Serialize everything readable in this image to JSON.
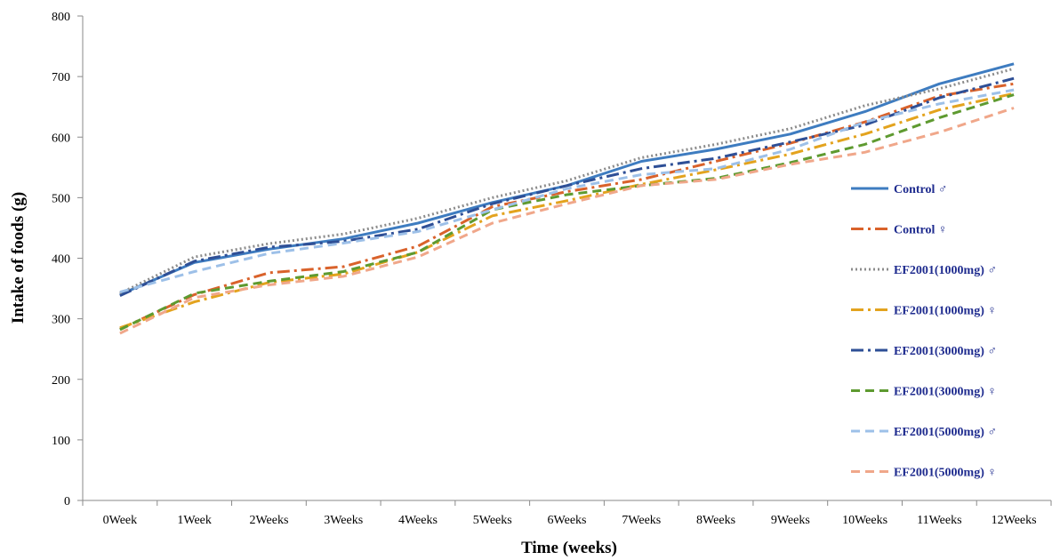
{
  "chart_data": {
    "type": "line",
    "xlabel": "Time (weeks)",
    "ylabel": "Intake of foods (g)",
    "ylim": [
      0,
      800
    ],
    "yticks": [
      0,
      100,
      200,
      300,
      400,
      500,
      600,
      700,
      800
    ],
    "categories": [
      "0Week",
      "1Week",
      "2Weeks",
      "3Weeks",
      "4Weeks",
      "5Weeks",
      "6Weeks",
      "7Weeks",
      "8Weeks",
      "9Weeks",
      "10Weeks",
      "11Weeks",
      "12Weeks"
    ],
    "grid": false,
    "legend_position": "right",
    "legend_text_color": "#1F2C8F",
    "series": [
      {
        "name": "Control ♂",
        "color": "#3E7CC0",
        "style": "solid",
        "values": [
          340,
          393,
          415,
          432,
          458,
          492,
          520,
          560,
          580,
          605,
          642,
          688,
          721
        ]
      },
      {
        "name": "Control ♀",
        "color": "#D9622B",
        "style": "dashdot",
        "values": [
          283,
          340,
          376,
          386,
          420,
          485,
          510,
          530,
          560,
          590,
          625,
          668,
          688
        ]
      },
      {
        "name": "EF2001(1000mg) ♂",
        "color": "#8C8C8C",
        "style": "dotted",
        "values": [
          342,
          402,
          424,
          440,
          466,
          500,
          528,
          566,
          588,
          614,
          652,
          680,
          713
        ]
      },
      {
        "name": "EF2001(1000mg) ♀",
        "color": "#E3A31E",
        "style": "dashdot",
        "values": [
          285,
          328,
          360,
          374,
          410,
          470,
          495,
          522,
          546,
          572,
          605,
          645,
          672
        ]
      },
      {
        "name": "EF2001(3000mg) ♂",
        "color": "#2E4F96",
        "style": "dashdot",
        "values": [
          338,
          395,
          418,
          428,
          448,
          490,
          520,
          548,
          565,
          592,
          620,
          665,
          697
        ]
      },
      {
        "name": "EF2001(3000mg) ♀",
        "color": "#5E9A30",
        "style": "dashed",
        "values": [
          282,
          342,
          362,
          378,
          410,
          480,
          505,
          520,
          532,
          558,
          588,
          632,
          670
        ]
      },
      {
        "name": "EF2001(5000mg) ♂",
        "color": "#9DC0E8",
        "style": "dashed",
        "values": [
          344,
          378,
          408,
          425,
          444,
          480,
          515,
          538,
          548,
          580,
          625,
          655,
          678
        ]
      },
      {
        "name": "EF2001(5000mg) ♀",
        "color": "#F0A78A",
        "style": "dashed",
        "values": [
          276,
          335,
          356,
          370,
          402,
          458,
          490,
          520,
          530,
          555,
          575,
          608,
          648
        ]
      }
    ]
  }
}
